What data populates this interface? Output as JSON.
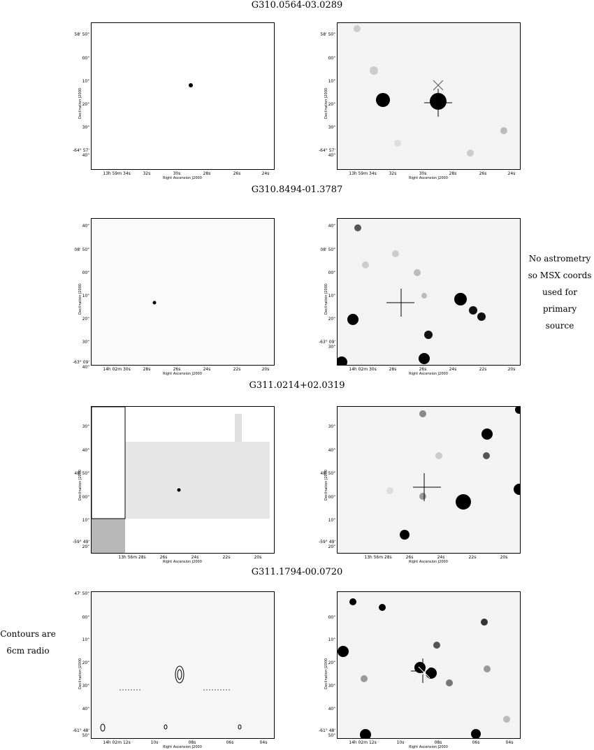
{
  "figures": [
    {
      "title": "G310.0564-03.0289",
      "left_yticks": [
        "58' 50\"",
        "00\"",
        "10\"",
        "20\"",
        "30\"",
        "-64° 57' 40\""
      ],
      "right_yticks": [
        "58' 50\"",
        "00\"",
        "10\"",
        "20\"",
        "30\"",
        "-64° 57' 40\""
      ],
      "xticks": [
        "13h 59m 34s",
        "32s",
        "30s",
        "28s",
        "26s",
        "24s"
      ],
      "ylabel": "Declination J2000",
      "xlabel": "Right Ascension J2000"
    },
    {
      "title": "G310.8494-01.3787",
      "left_yticks": [
        "40\"",
        "08' 50\"",
        "00\"",
        "10\"",
        "20\"",
        "30\"",
        "-63° 09' 40\""
      ],
      "right_yticks": [
        "40\"",
        "08' 50\"",
        "00\"",
        "10\"",
        "20\"",
        "-63° 09' 30\""
      ],
      "xticks": [
        "14h 02m 30s",
        "28s",
        "26s",
        "24s",
        "22s",
        "20s"
      ],
      "ylabel": "Declination J2000",
      "xlabel": "Right Ascension J2000",
      "note": [
        "No astrometry",
        "so MSX coords",
        "used for primary",
        "source"
      ]
    },
    {
      "title": "G311.0214+02.0319",
      "left_yticks": [
        "30\"",
        "40\"",
        "48' 50\"",
        "00\"",
        "10\"",
        "-59° 49' 20\""
      ],
      "right_yticks": [
        "30\"",
        "40\"",
        "48' 50\"",
        "00\"",
        "10\"",
        "-59° 49' 20\""
      ],
      "xticks": [
        "13h 56m 28s",
        "26s",
        "24s",
        "22s",
        "20s"
      ],
      "ylabel": "Declination J2000",
      "xlabel": "Right Ascension J2000"
    },
    {
      "title": "G311.1794-00.0720",
      "left_yticks": [
        "47' 50\"",
        "00\"",
        "10\"",
        "20\"",
        "30\"",
        "40\"",
        "-61° 48' 50\""
      ],
      "right_yticks": [
        "00\"",
        "10\"",
        "20\"",
        "30\"",
        "40\"",
        "-61° 48' 50\""
      ],
      "xticks": [
        "14h 02m 12s",
        "10s",
        "08s",
        "06s",
        "04s"
      ],
      "ylabel": "Declination J2000",
      "xlabel": "Right Ascension J2000",
      "note": [
        "Contours are",
        "6cm radio"
      ]
    }
  ],
  "colors": {
    "ink": "#000000",
    "bg": "#ffffff"
  }
}
